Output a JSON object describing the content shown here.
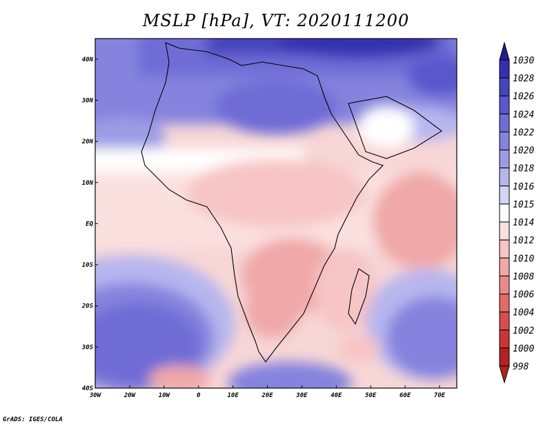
{
  "title": "MSLP [hPa], VT: 2020111200",
  "credit": "GrADS: IGES/COLA",
  "map": {
    "lon_range": [
      -30,
      75
    ],
    "lat_range": [
      -40,
      45
    ],
    "lon_ticks": [
      {
        "value": -30,
        "label": "30W"
      },
      {
        "value": -20,
        "label": "20W"
      },
      {
        "value": -10,
        "label": "10W"
      },
      {
        "value": 0,
        "label": "0"
      },
      {
        "value": 10,
        "label": "10E"
      },
      {
        "value": 20,
        "label": "20E"
      },
      {
        "value": 30,
        "label": "30E"
      },
      {
        "value": 40,
        "label": "40E"
      },
      {
        "value": 50,
        "label": "50E"
      },
      {
        "value": 60,
        "label": "60E"
      },
      {
        "value": 70,
        "label": "70E"
      }
    ],
    "lat_ticks": [
      {
        "value": 40,
        "label": "40N"
      },
      {
        "value": 30,
        "label": "30N"
      },
      {
        "value": 20,
        "label": "20N"
      },
      {
        "value": 10,
        "label": "10N"
      },
      {
        "value": 0,
        "label": "EQ"
      },
      {
        "value": -10,
        "label": "10S"
      },
      {
        "value": -20,
        "label": "20S"
      },
      {
        "value": -30,
        "label": "30S"
      },
      {
        "value": -40,
        "label": "40S"
      }
    ]
  },
  "colorbar": {
    "levels": [
      {
        "label": "1030",
        "color": "#1f1d96"
      },
      {
        "label": "1028",
        "color": "#3431b0"
      },
      {
        "label": "1026",
        "color": "#4744c0"
      },
      {
        "label": "1024",
        "color": "#5a57cc"
      },
      {
        "label": "1022",
        "color": "#6f6cd6"
      },
      {
        "label": "1020",
        "color": "#8583de"
      },
      {
        "label": "1018",
        "color": "#9c9be6"
      },
      {
        "label": "1016",
        "color": "#b7b6ee"
      },
      {
        "label": "1015",
        "color": "#d4d4f5"
      },
      {
        "label": "1014",
        "color": "#ffffff"
      },
      {
        "label": "1012",
        "color": "#fbe0e0"
      },
      {
        "label": "1010",
        "color": "#f7c5c5"
      },
      {
        "label": "1008",
        "color": "#f0a8a8"
      },
      {
        "label": "1006",
        "color": "#e98a8a"
      },
      {
        "label": "1004",
        "color": "#e16b6b"
      },
      {
        "label": "1002",
        "color": "#d84e4e"
      },
      {
        "label": "1000",
        "color": "#c93636"
      },
      {
        "label": "998",
        "color": "#b22222"
      }
    ]
  }
}
